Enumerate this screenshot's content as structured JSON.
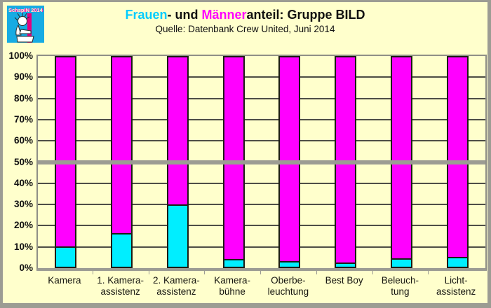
{
  "logo": {
    "text": "SchspIN 2014",
    "background_color": "#17abe3",
    "stripe_color": "#e6007e"
  },
  "header": {
    "title_parts": [
      {
        "text": "Frauen",
        "color": "#00ccff"
      },
      {
        "text": "- und ",
        "color": "#111111"
      },
      {
        "text": "Männer",
        "color": "#ff00ff"
      },
      {
        "text": "anteil: Gruppe BILD",
        "color": "#111111"
      }
    ],
    "subtitle": "Quelle: Datenbank Crew United, Juni 2014"
  },
  "chart_data": {
    "type": "bar",
    "stacked": true,
    "orientation": "vertical",
    "title": "Frauen- und Männeranteil: Gruppe BILD",
    "subtitle": "Quelle: Datenbank Crew United, Juni 2014",
    "categories": [
      "Kamera",
      "1. Kamera-assistenz",
      "2. Kamera-assistenz",
      "Kamera-bühne",
      "Oberbe-leuchtung",
      "Best Boy",
      "Beleuch-tung",
      "Licht-assistenz"
    ],
    "category_label_lines": [
      [
        "Kamera"
      ],
      [
        "1. Kamera-",
        "assistenz"
      ],
      [
        "2. Kamera-",
        "assistenz"
      ],
      [
        "Kamera-",
        "bühne"
      ],
      [
        "Oberbe-",
        "leuchtung"
      ],
      [
        "Best Boy"
      ],
      [
        "Beleuch-",
        "tung"
      ],
      [
        "Licht-",
        "assistenz"
      ]
    ],
    "series": [
      {
        "name": "Frauen",
        "color": "#00eeff",
        "values": [
          9.5,
          16,
          29.5,
          3.5,
          2.5,
          2,
          4,
          4.5
        ]
      },
      {
        "name": "Männer",
        "color": "#ff00ff",
        "values": [
          90.5,
          84,
          70.5,
          96.5,
          97.5,
          98,
          96,
          95.5
        ]
      }
    ],
    "y_ticks": [
      "0%",
      "10%",
      "20%",
      "30%",
      "40%",
      "50%",
      "60%",
      "70%",
      "80%",
      "90%",
      "100%"
    ],
    "ylim": [
      0,
      100
    ],
    "grid": true,
    "gridline_interval_percent": 10,
    "reference_line": {
      "value": 50,
      "color": "#9c9c93"
    },
    "legend": "none",
    "plot_background": "#FFFFCC"
  }
}
